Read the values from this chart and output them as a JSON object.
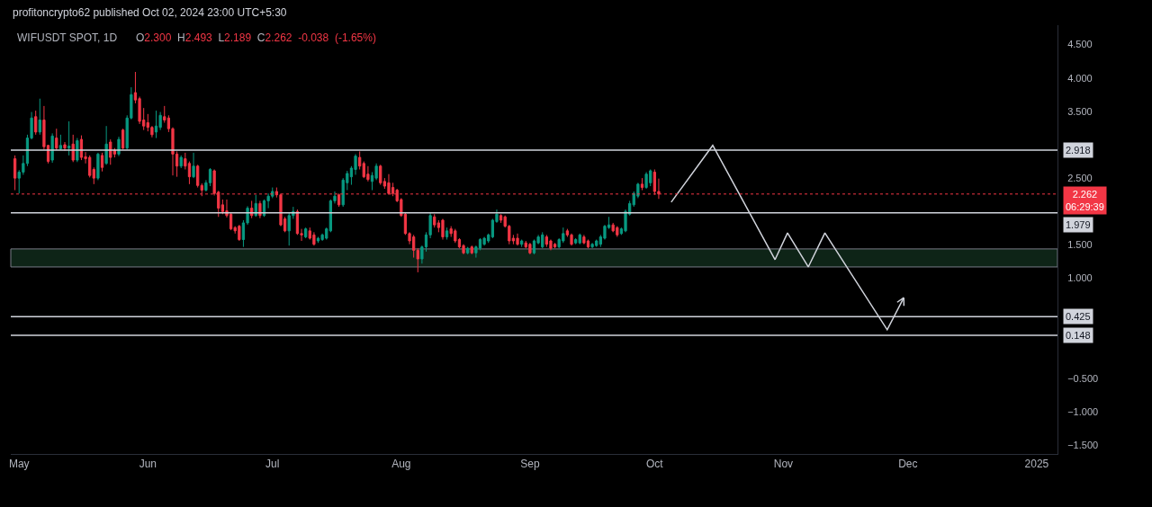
{
  "chart_data": {
    "type": "candlestick",
    "title": "WIFUSDT SPOT, 1D",
    "subtitle": "O2.300 H2.493 L2.189 C2.262 -0.038 (-1.65%)",
    "annotations": [
      "profitoncrypto62 published Oct 02, 2024 23:00 UTC+5:30"
    ],
    "x": [
      "2024-04-30",
      "2024-05-01",
      "2024-05-02",
      "2024-05-03",
      "2024-05-04",
      "2024-05-05",
      "2024-05-06",
      "2024-05-07",
      "2024-05-08",
      "2024-05-09",
      "2024-05-10",
      "2024-05-11",
      "2024-05-12",
      "2024-05-13",
      "2024-05-14",
      "2024-05-15",
      "2024-05-16",
      "2024-05-17",
      "2024-05-18",
      "2024-05-19",
      "2024-05-20",
      "2024-05-21",
      "2024-05-22",
      "2024-05-23",
      "2024-05-24",
      "2024-05-25",
      "2024-05-26",
      "2024-05-27",
      "2024-05-28",
      "2024-05-29",
      "2024-05-30",
      "2024-05-31",
      "2024-06-01",
      "2024-06-02",
      "2024-06-03",
      "2024-06-04",
      "2024-06-05",
      "2024-06-06",
      "2024-06-07",
      "2024-06-08",
      "2024-06-09",
      "2024-06-10",
      "2024-06-11",
      "2024-06-12",
      "2024-06-13",
      "2024-06-14",
      "2024-06-15",
      "2024-06-16",
      "2024-06-17",
      "2024-06-18",
      "2024-06-19",
      "2024-06-20",
      "2024-06-21",
      "2024-06-22",
      "2024-06-23",
      "2024-06-24",
      "2024-06-25",
      "2024-06-26",
      "2024-06-27",
      "2024-06-28",
      "2024-06-29",
      "2024-06-30",
      "2024-07-01",
      "2024-07-02",
      "2024-07-03",
      "2024-07-04",
      "2024-07-05",
      "2024-07-06",
      "2024-07-07",
      "2024-07-08",
      "2024-07-09",
      "2024-07-10",
      "2024-07-11",
      "2024-07-12",
      "2024-07-13",
      "2024-07-14",
      "2024-07-15",
      "2024-07-16",
      "2024-07-17",
      "2024-07-18",
      "2024-07-19",
      "2024-07-20",
      "2024-07-21",
      "2024-07-22",
      "2024-07-23",
      "2024-07-24",
      "2024-07-25",
      "2024-07-26",
      "2024-07-27",
      "2024-07-28",
      "2024-07-29",
      "2024-07-30",
      "2024-07-31",
      "2024-08-01",
      "2024-08-02",
      "2024-08-03",
      "2024-08-04",
      "2024-08-05",
      "2024-08-06",
      "2024-08-07",
      "2024-08-08",
      "2024-08-09",
      "2024-08-10",
      "2024-08-11",
      "2024-08-12",
      "2024-08-13",
      "2024-08-14",
      "2024-08-15",
      "2024-08-16",
      "2024-08-17",
      "2024-08-18",
      "2024-08-19",
      "2024-08-20",
      "2024-08-21",
      "2024-08-22",
      "2024-08-23",
      "2024-08-24",
      "2024-08-25",
      "2024-08-26",
      "2024-08-27",
      "2024-08-28",
      "2024-08-29",
      "2024-08-30",
      "2024-08-31",
      "2024-09-01",
      "2024-09-02",
      "2024-09-03",
      "2024-09-04",
      "2024-09-05",
      "2024-09-06",
      "2024-09-07",
      "2024-09-08",
      "2024-09-09",
      "2024-09-10",
      "2024-09-11",
      "2024-09-12",
      "2024-09-13",
      "2024-09-14",
      "2024-09-15",
      "2024-09-16",
      "2024-09-17",
      "2024-09-18",
      "2024-09-19",
      "2024-09-20",
      "2024-09-21",
      "2024-09-22",
      "2024-09-23",
      "2024-09-24",
      "2024-09-25",
      "2024-09-26",
      "2024-09-27",
      "2024-09-28",
      "2024-09-29",
      "2024-09-30",
      "2024-10-01",
      "2024-10-02"
    ],
    "ohlc": [
      [
        2.79,
        2.84,
        2.32,
        2.5
      ],
      [
        2.5,
        2.62,
        2.27,
        2.59
      ],
      [
        2.59,
        2.84,
        2.55,
        2.72
      ],
      [
        2.72,
        3.15,
        2.68,
        3.1
      ],
      [
        3.1,
        3.49,
        3.08,
        3.4
      ],
      [
        3.42,
        3.51,
        3.15,
        3.19
      ],
      [
        3.19,
        3.69,
        3.15,
        3.37
      ],
      [
        3.37,
        3.58,
        2.93,
        2.97
      ],
      [
        2.99,
        3.0,
        2.72,
        2.75
      ],
      [
        2.77,
        3.17,
        2.73,
        3.13
      ],
      [
        3.1,
        3.24,
        2.92,
        2.95
      ],
      [
        2.94,
        3.15,
        2.92,
        2.99
      ],
      [
        3.0,
        3.04,
        2.91,
        2.95
      ],
      [
        2.95,
        3.35,
        2.84,
        2.98
      ],
      [
        3.01,
        3.15,
        2.74,
        2.77
      ],
      [
        2.77,
        3.1,
        2.74,
        3.06
      ],
      [
        3.08,
        3.14,
        2.77,
        2.81
      ],
      [
        2.82,
        2.89,
        2.72,
        2.79
      ],
      [
        2.81,
        2.84,
        2.51,
        2.54
      ],
      [
        2.63,
        2.66,
        2.41,
        2.5
      ],
      [
        2.5,
        2.88,
        2.47,
        2.86
      ],
      [
        2.84,
        2.88,
        2.6,
        2.66
      ],
      [
        2.72,
        3.28,
        2.7,
        3.01
      ],
      [
        3.04,
        3.08,
        2.7,
        2.81
      ],
      [
        2.92,
        2.95,
        2.81,
        2.86
      ],
      [
        2.86,
        3.12,
        2.83,
        3.08
      ],
      [
        3.22,
        3.24,
        2.93,
        2.95
      ],
      [
        2.95,
        3.44,
        2.93,
        3.4
      ],
      [
        3.4,
        3.86,
        3.38,
        3.75
      ],
      [
        3.78,
        4.09,
        3.62,
        3.67
      ],
      [
        3.69,
        3.72,
        3.31,
        3.35
      ],
      [
        3.37,
        3.55,
        3.22,
        3.28
      ],
      [
        3.33,
        3.46,
        3.2,
        3.26
      ],
      [
        3.26,
        3.28,
        3.11,
        3.15
      ],
      [
        3.19,
        3.51,
        3.1,
        3.28
      ],
      [
        3.26,
        3.49,
        3.22,
        3.44
      ],
      [
        3.42,
        3.58,
        3.33,
        3.37
      ],
      [
        3.4,
        3.44,
        3.19,
        3.24
      ],
      [
        3.24,
        3.26,
        2.54,
        2.86
      ],
      [
        2.86,
        2.9,
        2.52,
        2.68
      ],
      [
        2.68,
        2.84,
        2.65,
        2.81
      ],
      [
        2.79,
        2.88,
        2.63,
        2.68
      ],
      [
        2.72,
        2.75,
        2.41,
        2.52
      ],
      [
        2.52,
        2.88,
        2.5,
        2.68
      ],
      [
        2.68,
        2.7,
        2.36,
        2.39
      ],
      [
        2.39,
        2.42,
        2.23,
        2.32
      ],
      [
        2.32,
        2.47,
        2.3,
        2.43
      ],
      [
        2.43,
        2.65,
        2.38,
        2.63
      ],
      [
        2.61,
        2.63,
        2.24,
        2.27
      ],
      [
        2.29,
        2.31,
        1.92,
        2.05
      ],
      [
        2.1,
        2.18,
        1.96,
        2.0
      ],
      [
        2.01,
        2.18,
        1.91,
        1.94
      ],
      [
        1.96,
        1.98,
        1.72,
        1.74
      ],
      [
        1.76,
        1.78,
        1.67,
        1.71
      ],
      [
        1.78,
        1.8,
        1.56,
        1.58
      ],
      [
        1.58,
        1.87,
        1.47,
        1.83
      ],
      [
        1.83,
        2.08,
        1.8,
        2.05
      ],
      [
        2.05,
        2.16,
        1.9,
        1.94
      ],
      [
        1.94,
        2.25,
        1.92,
        2.12
      ],
      [
        2.12,
        2.16,
        1.9,
        1.94
      ],
      [
        1.94,
        2.18,
        1.92,
        2.16
      ],
      [
        2.16,
        2.27,
        2.05,
        2.23
      ],
      [
        2.23,
        2.36,
        2.2,
        2.3
      ],
      [
        2.3,
        2.36,
        2.21,
        2.25
      ],
      [
        2.25,
        2.27,
        1.78,
        1.8
      ],
      [
        1.89,
        1.92,
        1.69,
        1.71
      ],
      [
        1.71,
        1.99,
        1.49,
        1.94
      ],
      [
        1.94,
        2.07,
        1.89,
        2.0
      ],
      [
        2.0,
        2.03,
        1.65,
        1.67
      ],
      [
        1.67,
        1.74,
        1.56,
        1.65
      ],
      [
        1.62,
        1.76,
        1.6,
        1.74
      ],
      [
        1.71,
        1.76,
        1.58,
        1.6
      ],
      [
        1.65,
        1.69,
        1.49,
        1.51
      ],
      [
        1.56,
        1.62,
        1.53,
        1.6
      ],
      [
        1.58,
        1.67,
        1.56,
        1.65
      ],
      [
        1.6,
        1.76,
        1.58,
        1.74
      ],
      [
        1.71,
        2.18,
        1.69,
        2.16
      ],
      [
        2.16,
        2.3,
        2.12,
        2.23
      ],
      [
        2.25,
        2.27,
        2.07,
        2.1
      ],
      [
        2.1,
        2.5,
        2.07,
        2.47
      ],
      [
        2.43,
        2.61,
        2.32,
        2.57
      ],
      [
        2.52,
        2.68,
        2.4,
        2.65
      ],
      [
        2.63,
        2.86,
        2.55,
        2.83
      ],
      [
        2.81,
        2.9,
        2.63,
        2.68
      ],
      [
        2.72,
        2.75,
        2.5,
        2.52
      ],
      [
        2.56,
        2.68,
        2.45,
        2.48
      ],
      [
        2.45,
        2.59,
        2.32,
        2.54
      ],
      [
        2.5,
        2.72,
        2.47,
        2.68
      ],
      [
        2.68,
        2.7,
        2.4,
        2.43
      ],
      [
        2.45,
        2.5,
        2.34,
        2.38
      ],
      [
        2.43,
        2.56,
        2.25,
        2.27
      ],
      [
        2.36,
        2.43,
        2.23,
        2.27
      ],
      [
        2.32,
        2.34,
        2.14,
        2.16
      ],
      [
        2.18,
        2.2,
        1.92,
        1.94
      ],
      [
        1.96,
        1.98,
        1.65,
        1.67
      ],
      [
        1.67,
        1.69,
        1.51,
        1.56
      ],
      [
        1.62,
        1.65,
        1.31,
        1.42
      ],
      [
        1.42,
        1.45,
        1.09,
        1.29
      ],
      [
        1.29,
        1.49,
        1.22,
        1.47
      ],
      [
        1.47,
        1.69,
        1.4,
        1.65
      ],
      [
        1.65,
        1.98,
        1.6,
        1.94
      ],
      [
        1.92,
        1.96,
        1.76,
        1.8
      ],
      [
        1.83,
        1.87,
        1.69,
        1.76
      ],
      [
        1.87,
        1.89,
        1.58,
        1.62
      ],
      [
        1.62,
        1.76,
        1.58,
        1.71
      ],
      [
        1.74,
        1.78,
        1.62,
        1.67
      ],
      [
        1.71,
        1.74,
        1.53,
        1.56
      ],
      [
        1.58,
        1.6,
        1.45,
        1.47
      ],
      [
        1.49,
        1.51,
        1.36,
        1.38
      ],
      [
        1.38,
        1.47,
        1.36,
        1.45
      ],
      [
        1.47,
        1.49,
        1.36,
        1.38
      ],
      [
        1.38,
        1.49,
        1.31,
        1.47
      ],
      [
        1.45,
        1.6,
        1.42,
        1.58
      ],
      [
        1.51,
        1.62,
        1.49,
        1.6
      ],
      [
        1.56,
        1.67,
        1.53,
        1.65
      ],
      [
        1.62,
        1.89,
        1.6,
        1.87
      ],
      [
        1.85,
        2.03,
        1.83,
        1.96
      ],
      [
        1.94,
        1.96,
        1.83,
        1.87
      ],
      [
        1.92,
        1.94,
        1.76,
        1.78
      ],
      [
        1.78,
        1.8,
        1.51,
        1.56
      ],
      [
        1.6,
        1.65,
        1.51,
        1.56
      ],
      [
        1.6,
        1.67,
        1.49,
        1.51
      ],
      [
        1.51,
        1.58,
        1.47,
        1.56
      ],
      [
        1.53,
        1.56,
        1.45,
        1.47
      ],
      [
        1.51,
        1.53,
        1.36,
        1.38
      ],
      [
        1.38,
        1.58,
        1.36,
        1.56
      ],
      [
        1.53,
        1.65,
        1.51,
        1.62
      ],
      [
        1.47,
        1.69,
        1.45,
        1.65
      ],
      [
        1.62,
        1.65,
        1.47,
        1.51
      ],
      [
        1.56,
        1.58,
        1.42,
        1.45
      ],
      [
        1.51,
        1.53,
        1.45,
        1.47
      ],
      [
        1.47,
        1.6,
        1.45,
        1.58
      ],
      [
        1.56,
        1.76,
        1.53,
        1.67
      ],
      [
        1.71,
        1.74,
        1.62,
        1.65
      ],
      [
        1.65,
        1.67,
        1.49,
        1.51
      ],
      [
        1.53,
        1.6,
        1.51,
        1.58
      ],
      [
        1.53,
        1.67,
        1.51,
        1.65
      ],
      [
        1.62,
        1.65,
        1.51,
        1.53
      ],
      [
        1.56,
        1.58,
        1.45,
        1.47
      ],
      [
        1.47,
        1.53,
        1.45,
        1.51
      ],
      [
        1.49,
        1.58,
        1.47,
        1.56
      ],
      [
        1.51,
        1.65,
        1.47,
        1.62
      ],
      [
        1.6,
        1.8,
        1.58,
        1.78
      ],
      [
        1.76,
        1.92,
        1.74,
        1.8
      ],
      [
        1.8,
        1.83,
        1.69,
        1.71
      ],
      [
        1.76,
        1.78,
        1.62,
        1.65
      ],
      [
        1.67,
        1.76,
        1.65,
        1.74
      ],
      [
        1.71,
        2.03,
        1.69,
        2.0
      ],
      [
        1.96,
        2.16,
        1.94,
        2.12
      ],
      [
        2.1,
        2.3,
        2.07,
        2.27
      ],
      [
        2.23,
        2.43,
        2.2,
        2.41
      ],
      [
        2.41,
        2.5,
        2.32,
        2.36
      ],
      [
        2.36,
        2.59,
        2.34,
        2.56
      ],
      [
        2.43,
        2.63,
        2.38,
        2.61
      ],
      [
        2.59,
        2.63,
        2.25,
        2.3
      ],
      [
        2.3,
        2.493,
        2.189,
        2.262
      ]
    ],
    "colors": [
      "#f23645",
      "#089981",
      "#089981",
      "#089981",
      "#089981",
      "#f23645",
      "#089981",
      "#f23645",
      "#f23645",
      "#089981",
      "#f23645",
      "#089981",
      "#f23645",
      "#089981",
      "#f23645",
      "#089981",
      "#f23645",
      "#f23645",
      "#f23645",
      "#f23645",
      "#089981",
      "#f23645",
      "#089981",
      "#f23645",
      "#f23645",
      "#089981",
      "#f23645",
      "#089981",
      "#089981",
      "#f23645",
      "#f23645",
      "#f23645",
      "#f23645",
      "#f23645",
      "#089981",
      "#089981",
      "#f23645",
      "#f23645",
      "#f23645",
      "#f23645",
      "#089981",
      "#f23645",
      "#f23645",
      "#089981",
      "#f23645",
      "#f23645",
      "#089981",
      "#089981",
      "#f23645",
      "#f23645",
      "#f23645",
      "#f23645",
      "#f23645",
      "#f23645",
      "#f23645",
      "#089981",
      "#089981",
      "#f23645",
      "#089981",
      "#f23645",
      "#089981",
      "#089981",
      "#089981",
      "#f23645",
      "#f23645",
      "#f23645",
      "#089981",
      "#089981",
      "#f23645",
      "#f23645",
      "#089981",
      "#f23645",
      "#f23645",
      "#089981",
      "#089981",
      "#089981",
      "#089981",
      "#089981",
      "#f23645",
      "#089981",
      "#089981",
      "#089981",
      "#089981",
      "#f23645",
      "#f23645",
      "#f23645",
      "#089981",
      "#089981",
      "#f23645",
      "#f23645",
      "#f23645",
      "#f23645",
      "#f23645",
      "#f23645",
      "#f23645",
      "#f23645",
      "#f23645",
      "#f23645",
      "#089981",
      "#089981",
      "#089981",
      "#f23645",
      "#f23645",
      "#f23645",
      "#089981",
      "#f23645",
      "#f23645",
      "#f23645",
      "#f23645",
      "#089981",
      "#f23645",
      "#089981",
      "#089981",
      "#089981",
      "#089981",
      "#089981",
      "#089981",
      "#f23645",
      "#f23645",
      "#f23645",
      "#f23645",
      "#f23645",
      "#089981",
      "#f23645",
      "#f23645",
      "#089981",
      "#089981",
      "#089981",
      "#f23645",
      "#f23645",
      "#f23645",
      "#089981",
      "#089981",
      "#f23645",
      "#f23645",
      "#089981",
      "#089981",
      "#f23645",
      "#f23645",
      "#089981",
      "#089981",
      "#089981",
      "#089981",
      "#089981",
      "#f23645",
      "#f23645",
      "#089981",
      "#089981",
      "#089981",
      "#089981",
      "#089981",
      "#f23645",
      "#089981",
      "#089981",
      "#f23645",
      "#f23645"
    ],
    "series": [
      {
        "type": "line",
        "color": "#d1d4dc",
        "x": [
          "2024-10-05",
          "2024-10-15",
          "2024-10-30",
          "2024-11-02",
          "2024-11-07",
          "2024-11-11",
          "2024-11-26",
          "2024-11-30"
        ],
        "values": [
          2.14,
          2.99,
          1.28,
          1.68,
          1.17,
          1.68,
          0.23,
          0.71
        ]
      }
    ],
    "xlim": [
      "2024-04-29",
      "2025-01-06"
    ],
    "xticks": [
      {
        "value": "2024-05-01",
        "label": "May"
      },
      {
        "value": "2024-06-01",
        "label": "Jun"
      },
      {
        "value": "2024-07-01",
        "label": "Jul"
      },
      {
        "value": "2024-08-01",
        "label": "Aug"
      },
      {
        "value": "2024-09-01",
        "label": "Sep"
      },
      {
        "value": "2024-10-01",
        "label": "Oct"
      },
      {
        "value": "2024-11-01",
        "label": "Nov"
      },
      {
        "value": "2024-12-01",
        "label": "Dec"
      },
      {
        "value": "2025-01-01",
        "label": "2025"
      }
    ],
    "ylim": [
      -1.63,
      4.79
    ],
    "yticks": [
      {
        "value": 4.5,
        "label": "4.500"
      },
      {
        "value": 4,
        "label": "4.000"
      },
      {
        "value": 3.5,
        "label": "3.500"
      },
      {
        "value": 2.5,
        "label": "2.500"
      },
      {
        "value": 1.5,
        "label": "1.500"
      },
      {
        "value": 1,
        "label": "1.000"
      },
      {
        "value": -0.5,
        "label": "−0.500"
      },
      {
        "value": -1,
        "label": "−1.000"
      },
      {
        "value": -1.5,
        "label": "−1.500"
      }
    ],
    "ref_lines": [
      {
        "axis": "y",
        "value": 2.918,
        "label": "2.918",
        "color": "#d1d4dc"
      },
      {
        "axis": "y",
        "value": 2.262,
        "label": "2.262\n06:29:39",
        "color": "#f23645",
        "line_style": "dotted"
      },
      {
        "axis": "y",
        "value": 1.979,
        "label": "1.979",
        "color": "#d1d4dc"
      },
      {
        "axis": "y",
        "value": 0.425,
        "label": "0.425",
        "color": "#d1d4dc"
      },
      {
        "axis": "y",
        "value": 0.148,
        "label": "0.148",
        "color": "#d1d4dc"
      }
    ],
    "bands": [
      {
        "axis": "y",
        "from": 1.17,
        "to": 1.44,
        "color": "#0e2417"
      }
    ],
    "grid": false
  }
}
